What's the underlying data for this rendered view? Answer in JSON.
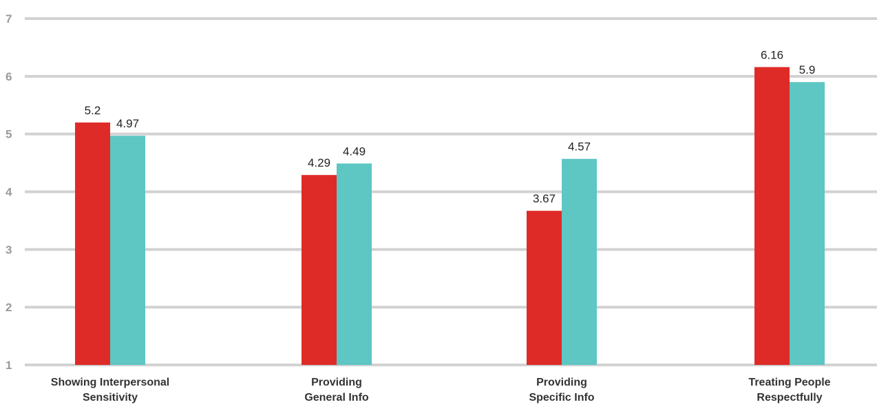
{
  "chart_data": {
    "type": "bar",
    "title": "",
    "xlabel": "",
    "ylabel": "",
    "ylim": [
      1,
      7
    ],
    "yticks": [
      "1",
      "2",
      "3",
      "4",
      "5",
      "6",
      "7"
    ],
    "grid": true,
    "legend": "none",
    "categories": [
      [
        "Showing Interpersonal",
        "Sensitivity"
      ],
      [
        "Providing",
        "General Info"
      ],
      [
        "Providing",
        "Specific Info"
      ],
      [
        "Treating People",
        "Respectfully"
      ]
    ],
    "series": [
      {
        "color": "#de2b28",
        "values": [
          5.2,
          4.29,
          3.67,
          6.16
        ],
        "labels": [
          "5.2",
          "4.29",
          "3.67",
          "6.16"
        ]
      },
      {
        "color": "#5ec6c3",
        "values": [
          4.97,
          4.49,
          4.57,
          5.9
        ],
        "labels": [
          "4.97",
          "4.49",
          "4.57",
          "5.9"
        ]
      }
    ]
  }
}
